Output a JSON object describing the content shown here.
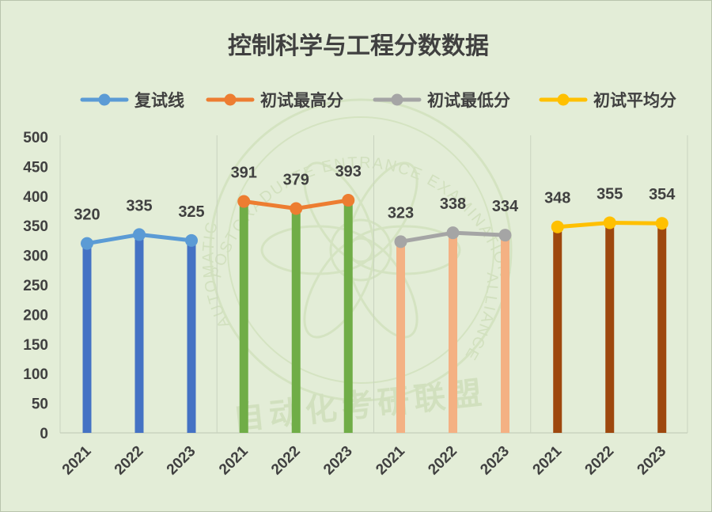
{
  "chart_data": {
    "type": "bar",
    "title": "控制科学与工程分数数据",
    "categories": [
      "2021",
      "2022",
      "2023"
    ],
    "ylim": [
      0,
      500
    ],
    "yticks": [
      0,
      50,
      100,
      150,
      200,
      250,
      300,
      350,
      400,
      450,
      500
    ],
    "grid": false,
    "legend_position": "top",
    "series": [
      {
        "name": "复试线",
        "values": [
          320,
          335,
          325
        ],
        "bar_color": "#4472c4",
        "line_color": "#5b9bd5"
      },
      {
        "name": "初试最高分",
        "values": [
          391,
          379,
          393
        ],
        "bar_color": "#70ad47",
        "line_color": "#ed7d31"
      },
      {
        "name": "初试最低分",
        "values": [
          323,
          338,
          334
        ],
        "bar_color": "#f4b183",
        "line_color": "#a5a5a5"
      },
      {
        "name": "初试平均分",
        "values": [
          348,
          355,
          354
        ],
        "bar_color": "#9e480e",
        "line_color": "#ffc000"
      }
    ],
    "watermark_text": [
      "POSTGRADUATE ENTRANCE EXAMINATION",
      "AUTOMATIC",
      "ALLIANCE",
      "自动化考研联盟"
    ]
  }
}
